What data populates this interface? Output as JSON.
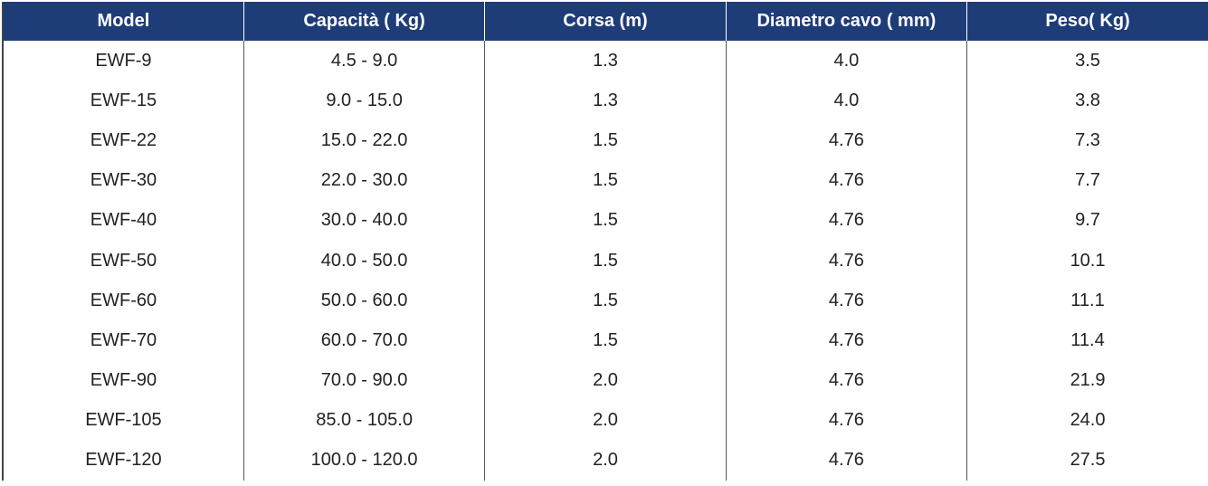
{
  "table": {
    "header": [
      "Model",
      "Capacità ( Kg)",
      "Corsa (m)",
      "Diametro cavo ( mm)",
      "Peso( Kg)"
    ],
    "rows": [
      [
        "EWF-9",
        "4.5 - 9.0",
        "1.3",
        "4.0",
        "3.5"
      ],
      [
        "EWF-15",
        "9.0 - 15.0",
        "1.3",
        "4.0",
        "3.8"
      ],
      [
        "EWF-22",
        "15.0 - 22.0",
        "1.5",
        "4.76",
        "7.3"
      ],
      [
        "EWF-30",
        "22.0 - 30.0",
        "1.5",
        "4.76",
        "7.7"
      ],
      [
        "EWF-40",
        "30.0 - 40.0",
        "1.5",
        "4.76",
        "9.7"
      ],
      [
        "EWF-50",
        "40.0 - 50.0",
        "1.5",
        "4.76",
        "10.1"
      ],
      [
        "EWF-60",
        "50.0 - 60.0",
        "1.5",
        "4.76",
        "11.1"
      ],
      [
        "EWF-70",
        "60.0 - 70.0",
        "1.5",
        "4.76",
        "11.4"
      ],
      [
        "EWF-90",
        "70.0 - 90.0",
        "2.0",
        "4.76",
        "21.9"
      ],
      [
        "EWF-105",
        "85.0 - 105.0",
        "2.0",
        "4.76",
        "24.0"
      ],
      [
        "EWF-120",
        "100.0 - 120.0",
        "2.0",
        "4.76",
        "27.5"
      ]
    ]
  }
}
